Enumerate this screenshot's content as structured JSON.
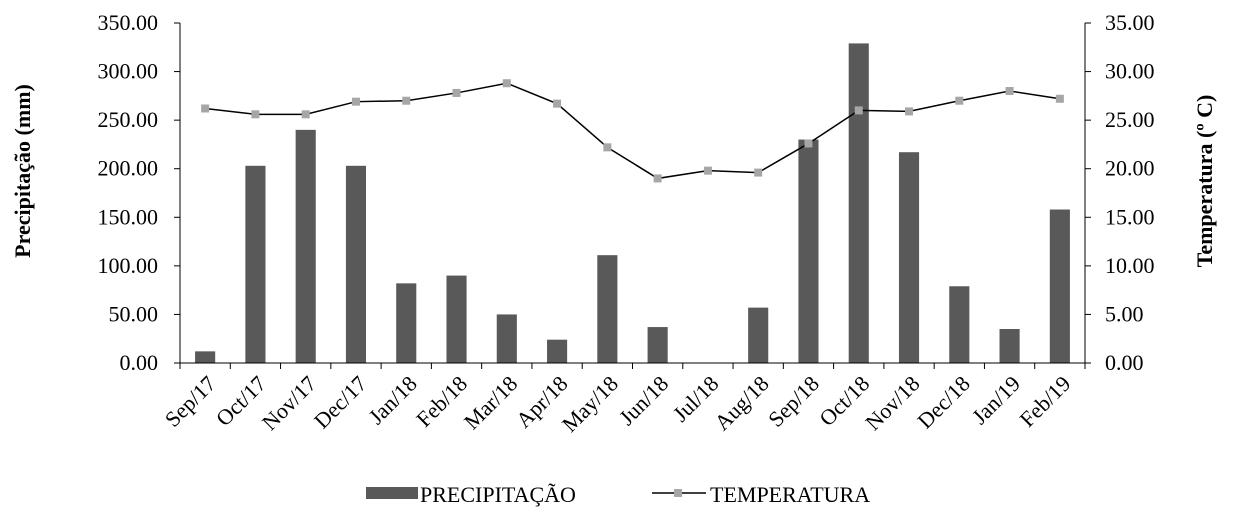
{
  "chart_data": {
    "type": "bar",
    "categories": [
      "Sep/17",
      "Oct/17",
      "Nov/17",
      "Dec/17",
      "Jan/18",
      "Feb/18",
      "Mar/18",
      "Apr/18",
      "May/18",
      "Jun/18",
      "Jul/18",
      "Aug/18",
      "Sep/18",
      "Oct/18",
      "Nov/18",
      "Dec/18",
      "Jan/19",
      "Feb/19"
    ],
    "series": [
      {
        "name": "PRECIPITAÇÃO",
        "type": "bar",
        "axis": "left",
        "color": "#595959",
        "values": [
          12,
          203,
          240,
          203,
          82,
          90,
          50,
          24,
          111,
          37,
          0,
          57,
          230,
          329,
          217,
          79,
          35,
          158
        ]
      },
      {
        "name": "TEMPERATURA",
        "type": "line",
        "axis": "right",
        "line_color": "#000000",
        "marker_color": "#a6a6a6",
        "values": [
          26.2,
          25.6,
          25.6,
          26.9,
          27.0,
          27.8,
          28.8,
          26.7,
          22.2,
          19.0,
          19.8,
          19.6,
          22.6,
          26.0,
          25.9,
          27.0,
          28.0,
          27.2
        ]
      }
    ],
    "ylabel": "Precipitação (mm)",
    "y2label": "Temperatura (º C)",
    "ylim": [
      0,
      350
    ],
    "y2lim": [
      0,
      35
    ],
    "yticks": [
      "0.00",
      "50.00",
      "100.00",
      "150.00",
      "200.00",
      "250.00",
      "300.00",
      "350.00"
    ],
    "y2ticks": [
      "0.00",
      "5.00",
      "10.00",
      "15.00",
      "20.00",
      "25.00",
      "30.00",
      "35.00"
    ],
    "legend_position": "bottom",
    "grid": false
  }
}
